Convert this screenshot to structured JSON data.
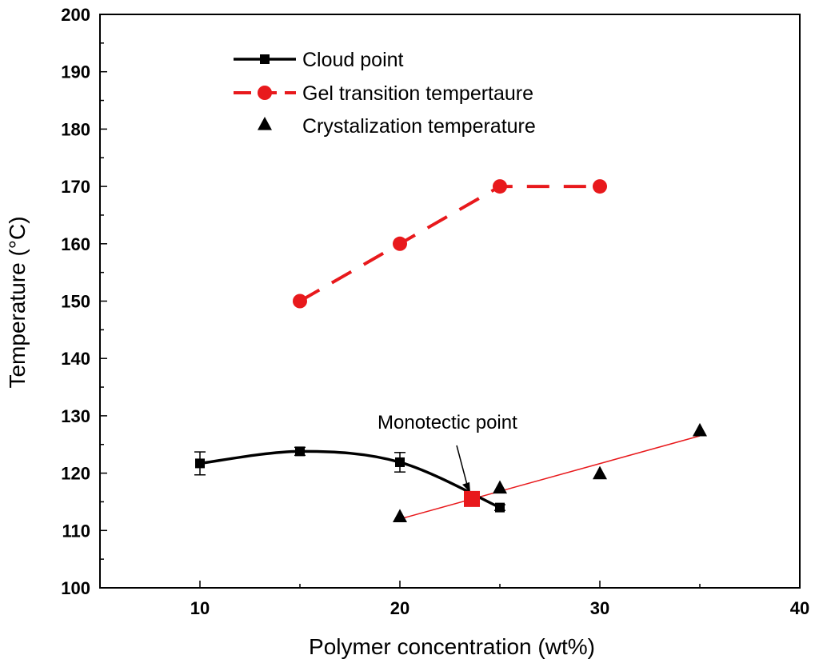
{
  "chart_data": {
    "type": "scatter",
    "xlabel": "Polymer concentration (wt%)",
    "ylabel": "Temperature (°C)",
    "xlim": [
      5,
      40
    ],
    "ylim": [
      100,
      200
    ],
    "x_ticks": [
      10,
      20,
      30,
      40
    ],
    "y_ticks": [
      100,
      110,
      120,
      130,
      140,
      150,
      160,
      170,
      180,
      190,
      200
    ],
    "grid": false,
    "legend_position": "top-left",
    "series": [
      {
        "name": "Cloud point",
        "style": "solid line with square markers",
        "color": "#000000",
        "x": [
          10,
          15,
          20,
          25
        ],
        "y": [
          121.7,
          123.8,
          121.9,
          114.0
        ],
        "error": [
          2.0,
          0.7,
          1.7,
          0.5
        ]
      },
      {
        "name": "Gel transition tempertaure",
        "style": "dashed line with circle markers",
        "color": "#e8191c",
        "x": [
          15,
          20,
          25,
          30
        ],
        "y": [
          150,
          160,
          170,
          170
        ]
      },
      {
        "name": "Crystalization temperature",
        "style": "triangle markers",
        "color": "#000000",
        "x": [
          20,
          25,
          30,
          35
        ],
        "y": [
          112.5,
          117.5,
          120,
          127.5
        ]
      }
    ],
    "fit_line": {
      "color": "#e8191c",
      "x": [
        20,
        35
      ],
      "y": [
        112,
        126.5
      ]
    },
    "annotation": {
      "text": "Monotectic point",
      "x": 23.6,
      "y": 115.5,
      "color": "#e8191c"
    }
  }
}
